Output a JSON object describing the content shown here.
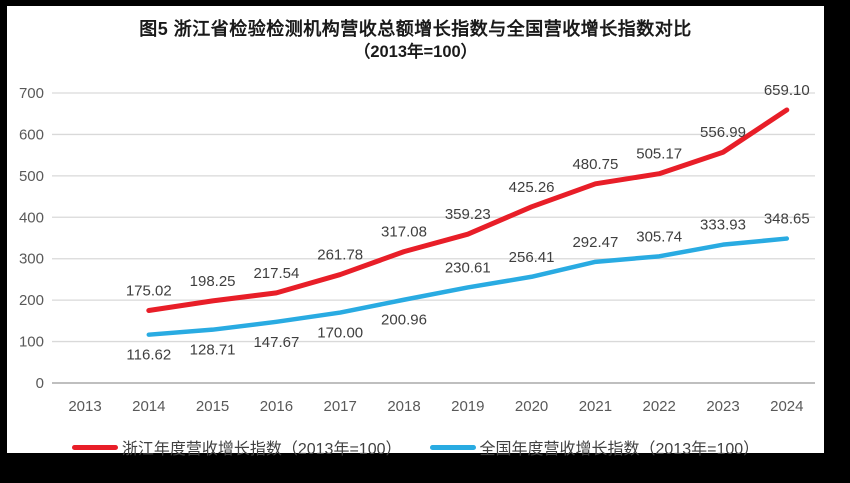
{
  "title": {
    "line1": "图5  浙江省检验检测机构营收总额增长指数与全国营收增长指数对比",
    "line2": "（2013年=100）"
  },
  "chart_data": {
    "type": "line",
    "title": "图5 浙江省检验检测机构营收总额增长指数与全国营收增长指数对比（2013年=100）",
    "xlabel": "",
    "ylabel": "",
    "x": [
      "2013",
      "2014",
      "2015",
      "2016",
      "2017",
      "2018",
      "2019",
      "2020",
      "2021",
      "2022",
      "2023",
      "2024"
    ],
    "series": [
      {
        "name": "浙江年度营收增长指数（2013年=100）",
        "color": "#E81E28",
        "line_width": 5,
        "values": [
          null,
          175.02,
          198.25,
          217.54,
          261.78,
          317.08,
          359.23,
          425.26,
          480.75,
          505.17,
          556.99,
          659.1
        ],
        "label_sides": [
          null,
          "above",
          "above",
          "above",
          "above",
          "above",
          "above",
          "above",
          "above",
          "above",
          "above",
          "above"
        ]
      },
      {
        "name": "全国年度营收增长指数（2013年=100）",
        "color": "#29ABE2",
        "line_width": 4.5,
        "values": [
          null,
          116.62,
          128.71,
          147.67,
          170.0,
          200.96,
          230.61,
          256.41,
          292.47,
          305.74,
          333.93,
          348.65
        ],
        "label_sides": [
          null,
          "below",
          "below",
          "below",
          "below",
          "below",
          "above",
          "above",
          "above",
          "above",
          "above",
          "above"
        ]
      }
    ],
    "ylim": [
      0,
      700
    ],
    "yticks": [
      0,
      100,
      200,
      300,
      400,
      500,
      600,
      700
    ],
    "grid": true,
    "legend_position": "bottom",
    "colors": {
      "gridline": "#D9D9D9",
      "axis_line": "#BFBFBF",
      "tick_label": "#595959",
      "data_label": "#3F3F3F",
      "frame": "#000000",
      "background": "#FFFFFF"
    }
  }
}
